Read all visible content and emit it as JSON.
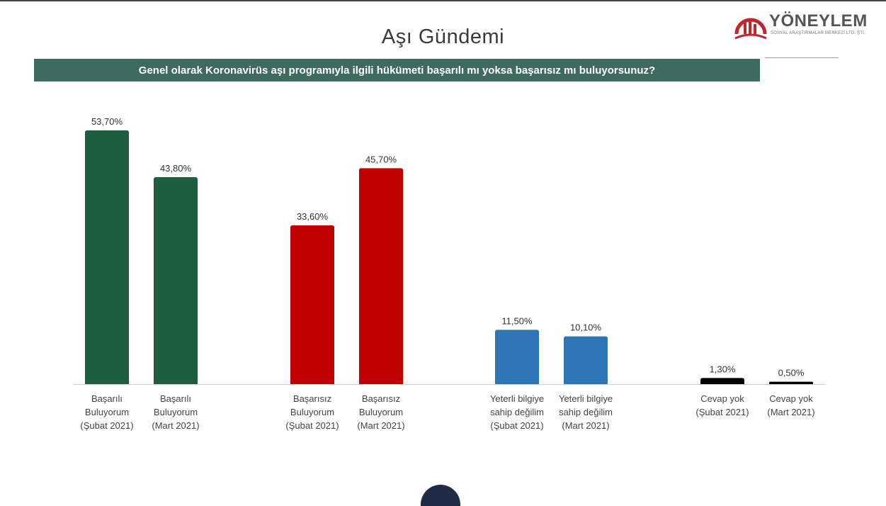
{
  "slide": {
    "title": "Aşı Gündemi",
    "question": "Genel olarak Koronavirüs aşı programıyla ilgili hükümeti başarılı mı yoksa başarısız mı buluyorsunuz?"
  },
  "logo": {
    "name": "YÖNEYLEM",
    "subtitle": "SOSYAL ARAŞTIRMALAR MERKEZİ LTD. ŞTİ.",
    "colors": {
      "icon": "#c0262c",
      "text": "#555555"
    }
  },
  "chart_data": {
    "type": "bar",
    "title": "",
    "xlabel": "",
    "ylabel": "",
    "ylim": [
      0,
      60
    ],
    "grid": false,
    "legend": "none",
    "categories": [
      [
        "Başarılı",
        "Buluyorum",
        "(Şubat 2021)"
      ],
      [
        "Başarılı",
        "Buluyorum",
        "(Mart 2021)"
      ],
      [
        "Başarısız",
        "Buluyorum",
        "(Şubat 2021)"
      ],
      [
        "Başarısız",
        "Buluyorum",
        "(Mart 2021)"
      ],
      [
        "Yeterli bilgiye",
        "sahip değilim",
        "(Şubat 2021)"
      ],
      [
        "Yeterli bilgiye",
        "sahip değilim",
        "(Mart 2021)"
      ],
      [
        "Cevap yok",
        "(Şubat 2021)"
      ],
      [
        "Cevap yok",
        "(Mart 2021)"
      ]
    ],
    "values": [
      53.7,
      43.8,
      33.6,
      45.7,
      11.5,
      10.1,
      1.3,
      0.5
    ],
    "value_labels": [
      "53,70%",
      "43,80%",
      "33,60%",
      "45,70%",
      "11,50%",
      "10,10%",
      "1,30%",
      "0,50%"
    ],
    "colors": [
      "#1e5e3e",
      "#1e5e3e",
      "#c00000",
      "#c00000",
      "#2e75b6",
      "#2e75b6",
      "#000000",
      "#000000"
    ]
  }
}
